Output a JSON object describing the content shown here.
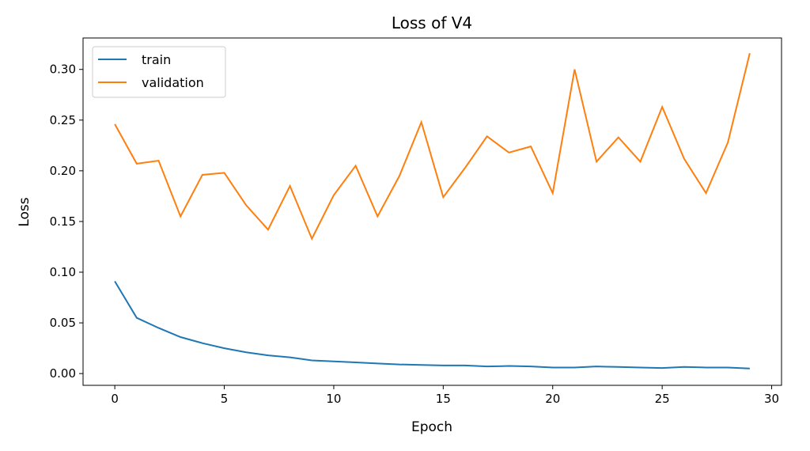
{
  "chart_data": {
    "type": "line",
    "title": "Loss of V4",
    "xlabel": "Epoch",
    "ylabel": "Loss",
    "xlim": [
      -1.45,
      30.45
    ],
    "ylim": [
      -0.0116,
      0.331
    ],
    "xticks": [
      0,
      5,
      10,
      15,
      20,
      25,
      30
    ],
    "xtick_labels": [
      "0",
      "5",
      "10",
      "15",
      "20",
      "25",
      "30"
    ],
    "yticks": [
      0.0,
      0.05,
      0.1,
      0.15,
      0.2,
      0.25,
      0.3
    ],
    "ytick_labels": [
      "0.00",
      "0.05",
      "0.10",
      "0.15",
      "0.20",
      "0.25",
      "0.30"
    ],
    "grid": false,
    "legend_placement": "top-left",
    "x": [
      0,
      1,
      2,
      3,
      4,
      5,
      6,
      7,
      8,
      9,
      10,
      11,
      12,
      13,
      14,
      15,
      16,
      17,
      18,
      19,
      20,
      21,
      22,
      23,
      24,
      25,
      26,
      27,
      28,
      29
    ],
    "series": [
      {
        "name": "train",
        "color": "#1f77b4",
        "values": [
          0.091,
          0.055,
          0.045,
          0.036,
          0.03,
          0.025,
          0.021,
          0.018,
          0.016,
          0.013,
          0.012,
          0.011,
          0.01,
          0.009,
          0.0085,
          0.008,
          0.008,
          0.007,
          0.0075,
          0.007,
          0.006,
          0.006,
          0.007,
          0.0065,
          0.006,
          0.0055,
          0.0065,
          0.006,
          0.006,
          0.005
        ]
      },
      {
        "name": "validation",
        "color": "#ff7f0e",
        "values": [
          0.246,
          0.207,
          0.21,
          0.155,
          0.196,
          0.198,
          0.166,
          0.142,
          0.185,
          0.133,
          0.176,
          0.205,
          0.155,
          0.195,
          0.248,
          0.174,
          0.203,
          0.234,
          0.218,
          0.224,
          0.178,
          0.3,
          0.209,
          0.233,
          0.209,
          0.263,
          0.212,
          0.178,
          0.228,
          0.316
        ]
      }
    ]
  }
}
